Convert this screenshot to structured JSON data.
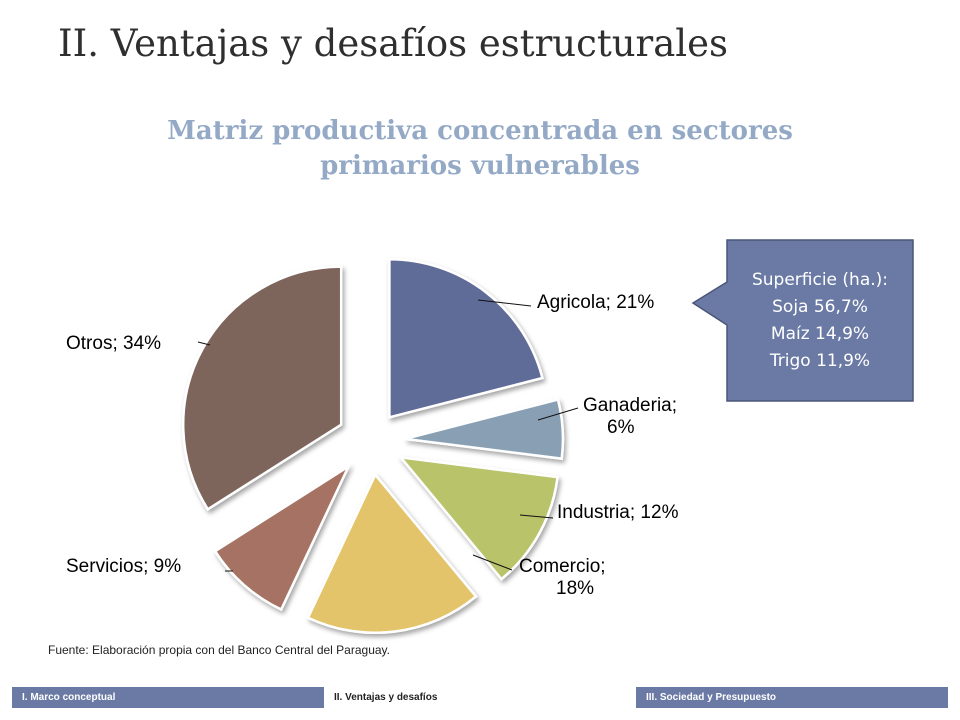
{
  "slide": {
    "title": "II. Ventajas y desafíos estructurales",
    "subtitle_line1": "Matriz productiva concentrada en sectores",
    "subtitle_line2": "primarios vulnerables",
    "source": "Fuente: Elaboración propia con del Banco Central del Paraguay."
  },
  "callout": {
    "lines": [
      "Superficie (ha.):",
      "Soja 56,7%",
      "Maíz 14,9%",
      "Trigo 11,9%"
    ],
    "color": "#6a7aa4"
  },
  "chart_data": {
    "type": "pie",
    "slices": [
      {
        "name": "Agricola",
        "value": 21,
        "label": [
          "Agricola; 21%"
        ],
        "color": "#616c98"
      },
      {
        "name": "Ganaderia",
        "value": 6,
        "label": [
          "Ganaderia;",
          "6%"
        ],
        "color": "#89a0b4"
      },
      {
        "name": "Industria",
        "value": 12,
        "label": [
          "Industria; 12%"
        ],
        "color": "#b9c36b"
      },
      {
        "name": "Comercio",
        "value": 18,
        "label": [
          "Comercio;",
          "18%"
        ],
        "color": "#e3c46b"
      },
      {
        "name": "Servicios",
        "value": 9,
        "label": [
          "Servicios; 9%"
        ],
        "color": "#a57263"
      },
      {
        "name": "Otros",
        "value": 34,
        "label": [
          "Otros; 34%"
        ],
        "color": "#7e655c"
      }
    ]
  },
  "nav": {
    "tabs": [
      {
        "label": "I. Marco conceptual",
        "active": false
      },
      {
        "label": "II. Ventajas y desafíos",
        "active": true
      },
      {
        "label": "III. Sociedad y Presupuesto",
        "active": false
      }
    ]
  }
}
